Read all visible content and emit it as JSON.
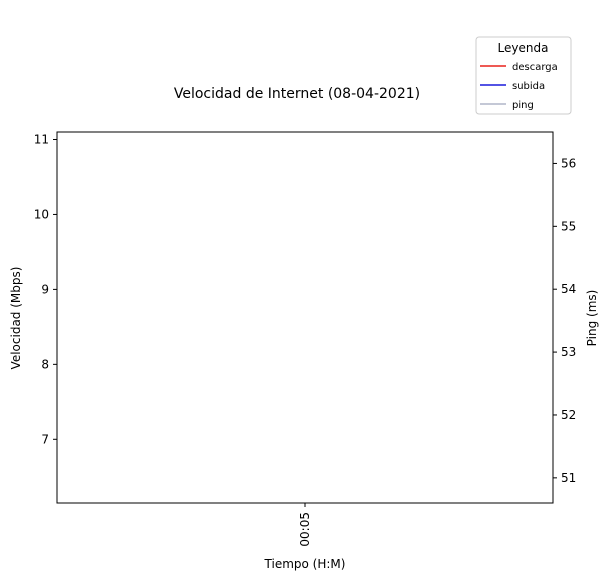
{
  "chart_data": {
    "type": "line",
    "title": "Velocidad de Internet (08-04-2021)",
    "xlabel": "Tiempo (H:M)",
    "ylabel": "Velocidad (Mbps)",
    "y2label": "Ping (ms)",
    "x_ticks": [
      "00:05"
    ],
    "y_ticks": [
      7,
      8,
      9,
      10,
      11
    ],
    "y_range": [
      6.15,
      11.1
    ],
    "y2_ticks": [
      51,
      52,
      53,
      54,
      55,
      56
    ],
    "y2_range": [
      50.6,
      56.5
    ],
    "grid": false,
    "legend": {
      "title": "Leyenda",
      "placement": "top-right, above plot",
      "entries": [
        {
          "label": "descarga",
          "color": "#e8221b"
        },
        {
          "label": "subida",
          "color": "#1a1adc"
        },
        {
          "label": "ping",
          "color": "#b0b6c8"
        }
      ]
    },
    "series": [
      {
        "name": "descarga",
        "axis": "left",
        "color": "#e8221b",
        "x": [
          "00:05"
        ],
        "values": [
          null
        ]
      },
      {
        "name": "subida",
        "axis": "left",
        "color": "#1a1adc",
        "x": [
          "00:05"
        ],
        "values": [
          null
        ]
      },
      {
        "name": "ping",
        "axis": "right",
        "color": "#b0b6c8",
        "x": [
          "00:05"
        ],
        "values": [
          null
        ]
      }
    ]
  }
}
